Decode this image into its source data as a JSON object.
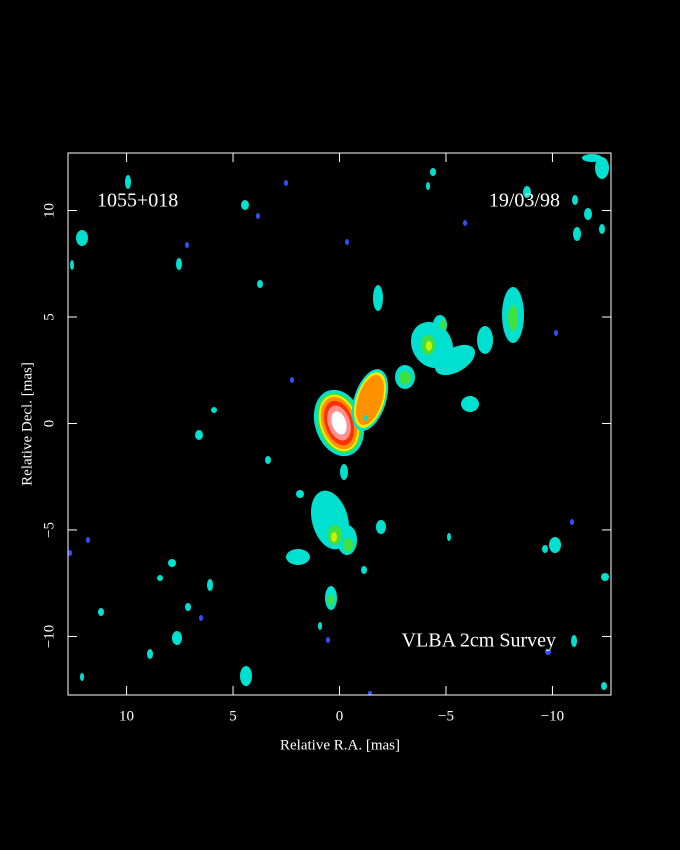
{
  "chart_data": {
    "type": "image",
    "x_label": "Relative R.A. [mas]",
    "y_label": "Relative Decl. [mas]",
    "annotations": [
      "1055+018",
      "19/03/98",
      "VLBA 2cm Survey"
    ],
    "xlim": [
      12.75,
      -12.75
    ],
    "ylim": [
      -12.75,
      12.7
    ],
    "xticks": [
      10,
      5,
      0,
      {
        "value": -5,
        "label": "−5"
      },
      {
        "value": -10,
        "label": "−10"
      }
    ],
    "yticks": [
      {
        "value": -10,
        "label": "−10"
      },
      {
        "value": -5,
        "label": "−5"
      },
      0,
      5,
      10
    ]
  }
}
